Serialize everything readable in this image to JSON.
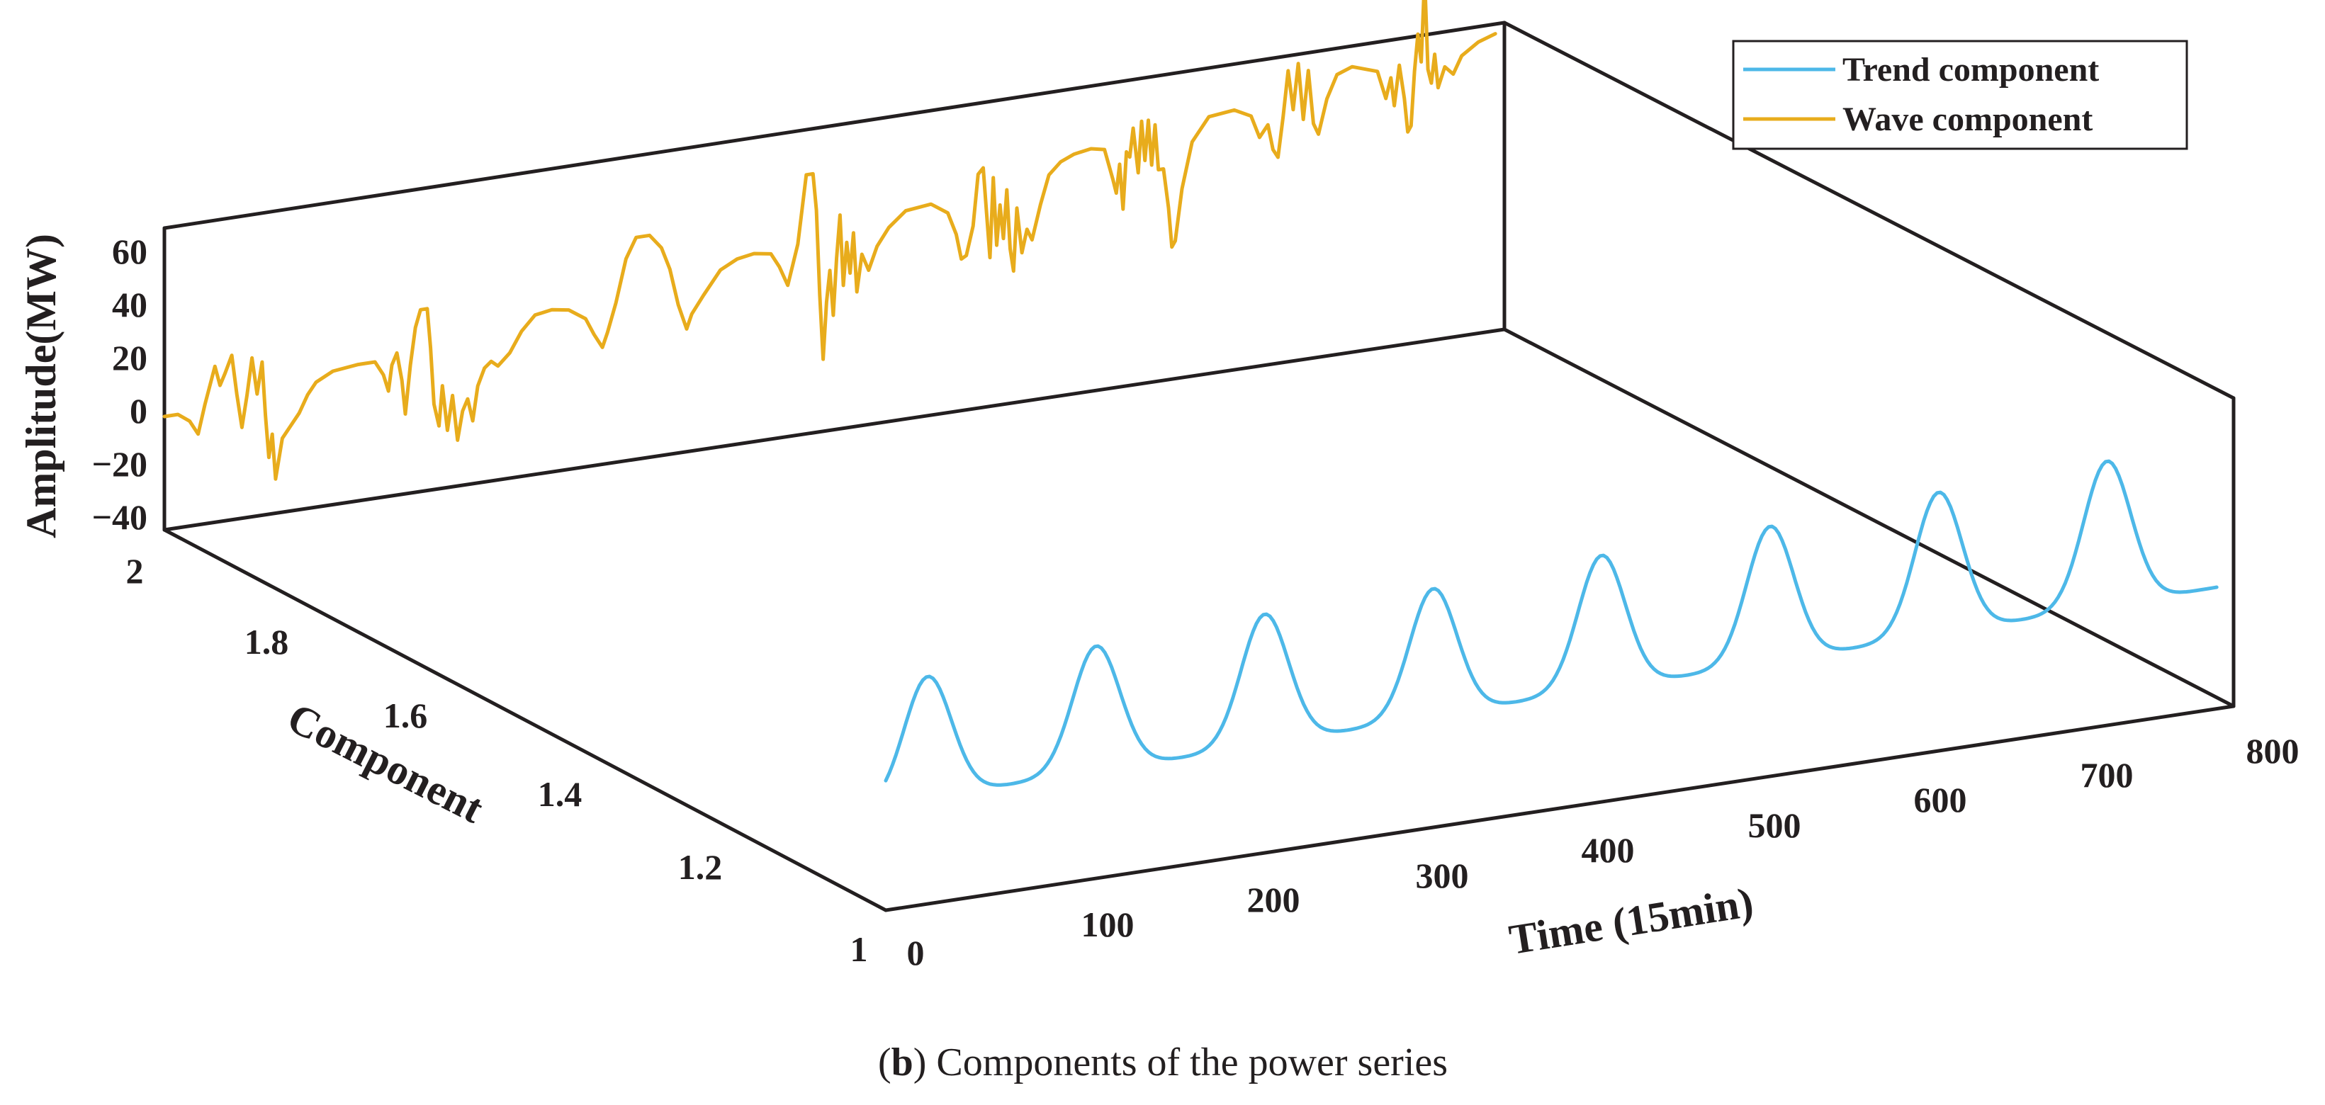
{
  "chart_data": {
    "type": "line",
    "projection": "3d",
    "caption_letter": "b",
    "caption_text": "Components of the power series",
    "xlabel": "Time (15min)",
    "ylabel": "Component",
    "zlabel": "Amplitude(MW)",
    "xlim": [
      0,
      800
    ],
    "ylim": [
      1,
      2
    ],
    "zlim": [
      -40,
      70
    ],
    "x_ticks": [
      "0",
      "100",
      "200",
      "300",
      "400",
      "500",
      "600",
      "700",
      "800"
    ],
    "y_ticks": [
      "1",
      "1.2",
      "1.4",
      "1.6",
      "1.8",
      "2"
    ],
    "z_ticks": [
      "60",
      "40",
      "20",
      "0",
      "−20",
      "−40"
    ],
    "legend_position": "top-right",
    "colors": {
      "trend": "#4db8e8",
      "wave": "#e8ac1c",
      "axes": "#231f20"
    },
    "series": [
      {
        "name": "Trend component",
        "component": 1,
        "color": "#4db8e8",
        "base": [
          -3,
          -2,
          -2,
          -1,
          0,
          0,
          1,
          2,
          3
        ],
        "amplitude": [
          43,
          44,
          46,
          45,
          47,
          48,
          50,
          51
        ],
        "peak_positions": [
          25,
          125,
          225,
          325,
          425,
          525,
          625,
          725
        ],
        "peak_width": 14
      },
      {
        "name": "Wave component",
        "component": 2,
        "color": "#e8ac1c",
        "points": [
          [
            0,
            0
          ],
          [
            8,
            0
          ],
          [
            15,
            -3
          ],
          [
            20,
            -8
          ],
          [
            24,
            2
          ],
          [
            30,
            15
          ],
          [
            33,
            8
          ],
          [
            36,
            12
          ],
          [
            40,
            18
          ],
          [
            43,
            4
          ],
          [
            46,
            -8
          ],
          [
            49,
            3
          ],
          [
            52,
            16
          ],
          [
            55,
            3
          ],
          [
            58,
            14
          ],
          [
            60,
            -5
          ],
          [
            62,
            -20
          ],
          [
            64,
            -12
          ],
          [
            66,
            -28
          ],
          [
            70,
            -14
          ],
          [
            75,
            -10
          ],
          [
            80,
            -6
          ],
          [
            85,
            0
          ],
          [
            90,
            4
          ],
          [
            100,
            7
          ],
          [
            115,
            8
          ],
          [
            125,
            8
          ],
          [
            130,
            3
          ],
          [
            133,
            -3
          ],
          [
            135,
            6
          ],
          [
            138,
            10
          ],
          [
            141,
            0
          ],
          [
            143,
            -12
          ],
          [
            146,
            5
          ],
          [
            149,
            18
          ],
          [
            152,
            24
          ],
          [
            156,
            24
          ],
          [
            158,
            10
          ],
          [
            160,
            -10
          ],
          [
            163,
            -18
          ],
          [
            165,
            -4
          ],
          [
            168,
            -20
          ],
          [
            171,
            -8
          ],
          [
            174,
            -24
          ],
          [
            177,
            -14
          ],
          [
            180,
            -10
          ],
          [
            183,
            -18
          ],
          [
            186,
            -6
          ],
          [
            190,
            0
          ],
          [
            194,
            2
          ],
          [
            198,
            0
          ],
          [
            205,
            4
          ],
          [
            212,
            11
          ],
          [
            220,
            16
          ],
          [
            230,
            17
          ],
          [
            240,
            16
          ],
          [
            250,
            12
          ],
          [
            255,
            6
          ],
          [
            260,
            1
          ],
          [
            263,
            6
          ],
          [
            268,
            16
          ],
          [
            274,
            31
          ],
          [
            280,
            38
          ],
          [
            288,
            38
          ],
          [
            295,
            33
          ],
          [
            300,
            25
          ],
          [
            305,
            12
          ],
          [
            310,
            3
          ],
          [
            313,
            8
          ],
          [
            320,
            14
          ],
          [
            330,
            22
          ],
          [
            340,
            25
          ],
          [
            350,
            26
          ],
          [
            360,
            25
          ],
          [
            365,
            20
          ],
          [
            370,
            13
          ],
          [
            376,
            27
          ],
          [
            381,
            51
          ],
          [
            385,
            51
          ],
          [
            387,
            38
          ],
          [
            389,
            8
          ],
          [
            391,
            -15
          ],
          [
            393,
            5
          ],
          [
            395,
            16
          ],
          [
            397,
            0
          ],
          [
            399,
            20
          ],
          [
            401,
            35
          ],
          [
            403,
            10
          ],
          [
            405,
            25
          ],
          [
            407,
            14
          ],
          [
            409,
            28
          ],
          [
            411,
            7
          ],
          [
            414,
            20
          ],
          [
            418,
            14
          ],
          [
            423,
            22
          ],
          [
            430,
            28
          ],
          [
            440,
            33
          ],
          [
            455,
            34
          ],
          [
            465,
            30
          ],
          [
            470,
            22
          ],
          [
            473,
            13
          ],
          [
            476,
            14
          ],
          [
            480,
            24
          ],
          [
            483,
            42
          ],
          [
            486,
            44
          ],
          [
            488,
            28
          ],
          [
            490,
            12
          ],
          [
            492,
            40
          ],
          [
            494,
            16
          ],
          [
            496,
            30
          ],
          [
            498,
            18
          ],
          [
            500,
            35
          ],
          [
            502,
            14
          ],
          [
            504,
            6
          ],
          [
            506,
            28
          ],
          [
            509,
            12
          ],
          [
            512,
            20
          ],
          [
            515,
            16
          ],
          [
            520,
            28
          ],
          [
            525,
            38
          ],
          [
            532,
            42
          ],
          [
            540,
            44
          ],
          [
            550,
            45
          ],
          [
            558,
            44
          ],
          [
            563,
            33
          ],
          [
            565,
            28
          ],
          [
            567,
            38
          ],
          [
            569,
            22
          ],
          [
            571,
            42
          ],
          [
            573,
            40
          ],
          [
            575,
            50
          ],
          [
            578,
            34
          ],
          [
            580,
            52
          ],
          [
            582,
            38
          ],
          [
            584,
            52
          ],
          [
            586,
            36
          ],
          [
            588,
            50
          ],
          [
            590,
            34
          ],
          [
            593,
            34
          ],
          [
            596,
            20
          ],
          [
            598,
            6
          ],
          [
            600,
            8
          ],
          [
            604,
            26
          ],
          [
            610,
            42
          ],
          [
            620,
            50
          ],
          [
            635,
            51
          ],
          [
            645,
            48
          ],
          [
            650,
            40
          ],
          [
            655,
            44
          ],
          [
            658,
            35
          ],
          [
            661,
            32
          ],
          [
            664,
            46
          ],
          [
            667,
            62
          ],
          [
            670,
            48
          ],
          [
            673,
            64
          ],
          [
            676,
            44
          ],
          [
            679,
            61
          ],
          [
            682,
            42
          ],
          [
            685,
            38
          ],
          [
            690,
            50
          ],
          [
            696,
            58
          ],
          [
            705,
            60
          ],
          [
            720,
            57
          ],
          [
            725,
            47
          ],
          [
            728,
            54
          ],
          [
            730,
            44
          ],
          [
            733,
            58
          ],
          [
            736,
            46
          ],
          [
            738,
            34
          ],
          [
            740,
            36
          ],
          [
            742,
            55
          ],
          [
            744,
            68
          ],
          [
            746,
            58
          ],
          [
            748,
            88
          ],
          [
            750,
            55
          ],
          [
            752,
            50
          ],
          [
            754,
            60
          ],
          [
            756,
            48
          ],
          [
            760,
            55
          ],
          [
            765,
            52
          ],
          [
            770,
            58
          ],
          [
            780,
            62
          ],
          [
            790,
            64
          ]
        ]
      }
    ]
  }
}
